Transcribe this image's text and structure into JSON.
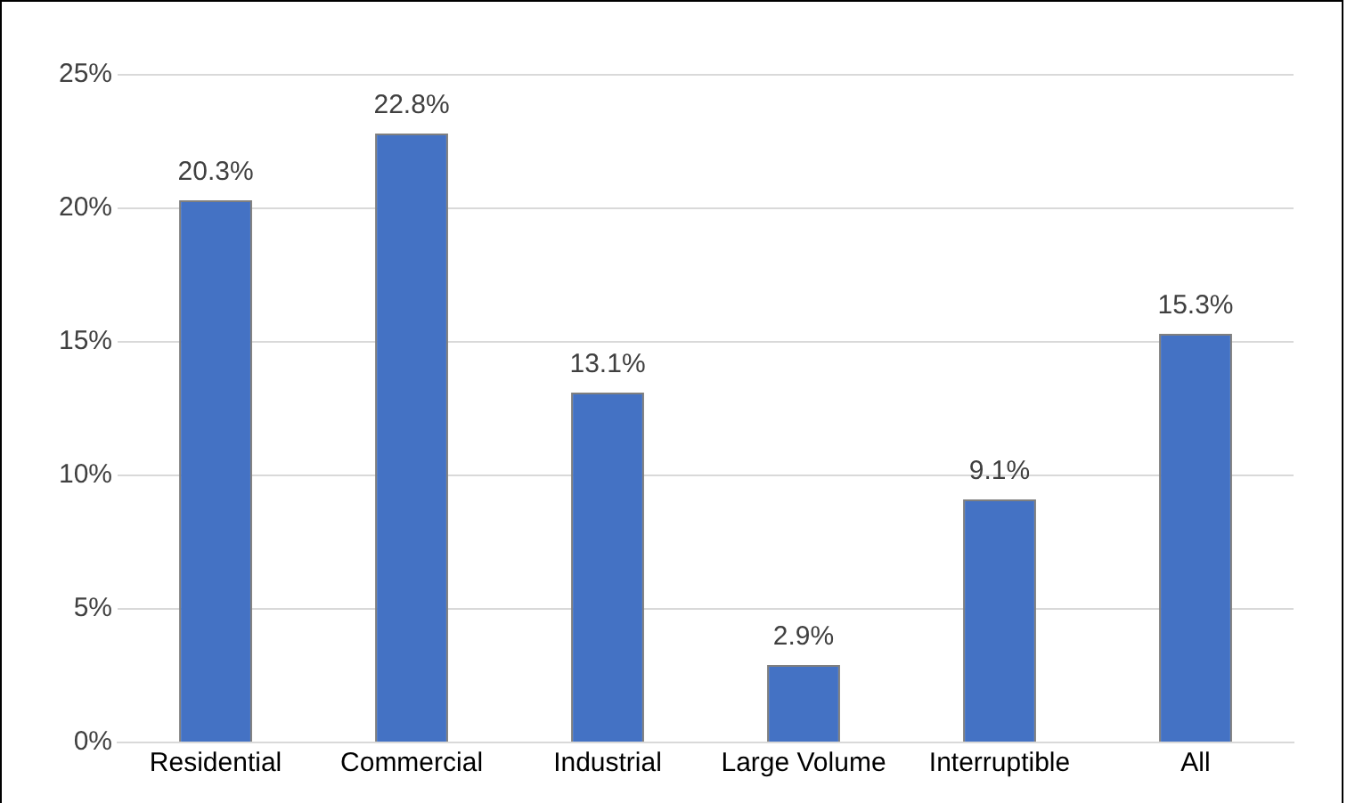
{
  "chart_data": {
    "type": "bar",
    "categories": [
      "Residential",
      "Commercial",
      "Industrial",
      "Large Volume",
      "Interruptible",
      "All"
    ],
    "values": [
      20.3,
      22.8,
      13.1,
      2.9,
      9.1,
      15.3
    ],
    "value_labels": [
      "20.3%",
      "22.8%",
      "13.1%",
      "2.9%",
      "9.1%",
      "15.3%"
    ],
    "color": "#4472c4",
    "ylim": [
      0,
      25
    ],
    "yticks": [
      {
        "value": 0,
        "label": "0%"
      },
      {
        "value": 5,
        "label": "5%"
      },
      {
        "value": 10,
        "label": "10%"
      },
      {
        "value": 15,
        "label": "15%"
      },
      {
        "value": 20,
        "label": "20%"
      },
      {
        "value": 25,
        "label": "25%"
      }
    ],
    "grid": "y",
    "legend": false
  }
}
